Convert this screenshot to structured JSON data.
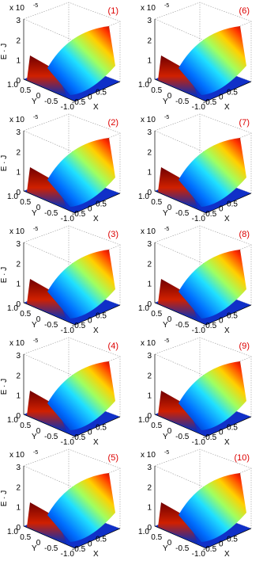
{
  "panels": [
    {
      "label": "(1)"
    },
    {
      "label": "(6)"
    },
    {
      "label": "(2)"
    },
    {
      "label": "(7)"
    },
    {
      "label": "(3)"
    },
    {
      "label": "(8)"
    },
    {
      "label": "(4)"
    },
    {
      "label": "(9)"
    },
    {
      "label": "(5)"
    },
    {
      "label": "(10)"
    }
  ],
  "axes": {
    "z_label": "E · J",
    "z_multiplier": "x 10",
    "z_exponent": "-5",
    "z_ticks": [
      "0",
      "1",
      "2",
      "3"
    ],
    "y_label": "Y",
    "y_ticks": [
      "1.0",
      "0.5",
      "0",
      "-0.5"
    ],
    "x_label": "X",
    "x_ticks": [
      "-1.0",
      "-0.5",
      "0",
      "0.5"
    ]
  }
}
